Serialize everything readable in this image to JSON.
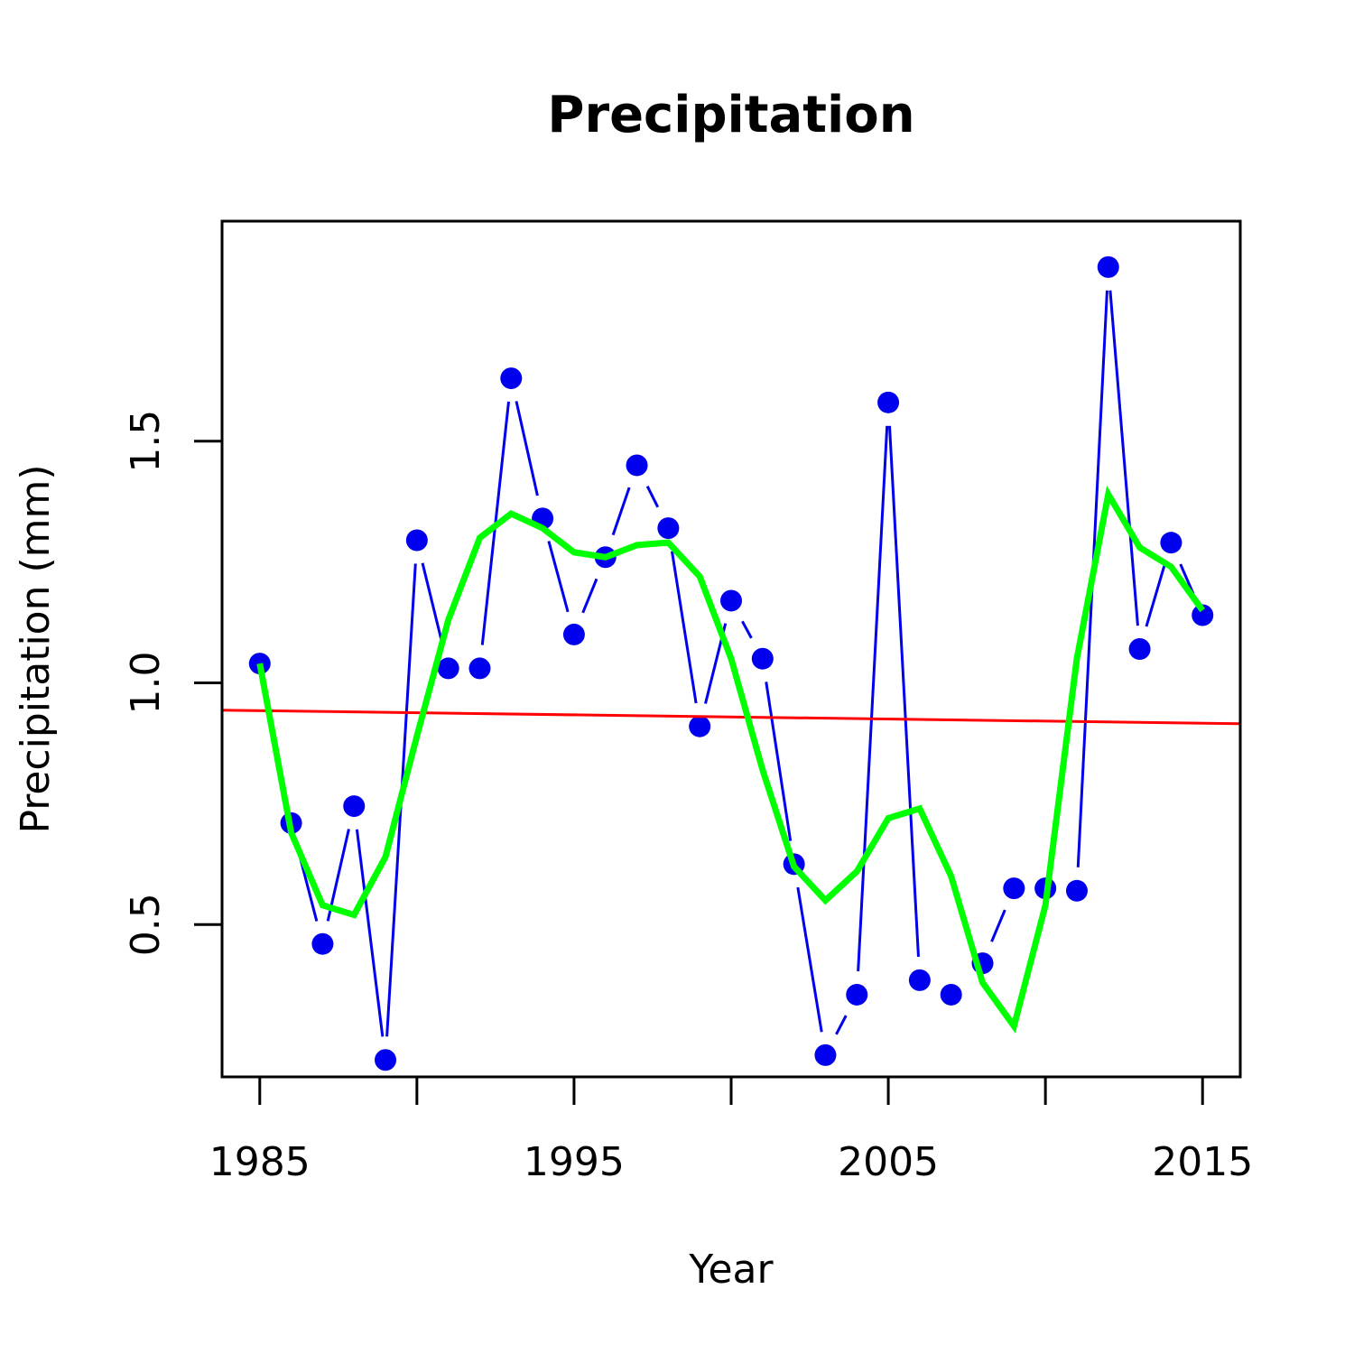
{
  "chart_data": {
    "type": "line",
    "title": "Precipitation",
    "xlabel": "Year",
    "ylabel": "Precipitation (mm)",
    "xlim": [
      1983.8,
      2016.2
    ],
    "ylim": [
      0.185,
      1.955
    ],
    "x_ticks": [
      1985,
      1990,
      1995,
      2000,
      2005,
      2010,
      2015
    ],
    "x_tick_labels": [
      "1985",
      "1995",
      "2005",
      "2015"
    ],
    "x_tick_labels_at": [
      1985,
      1995,
      2005,
      2015
    ],
    "y_ticks": [
      0.5,
      1.0,
      1.5
    ],
    "y_tick_labels": [
      "0.5",
      "1.0",
      "1.5"
    ],
    "grid": false,
    "legend": "none",
    "x": [
      1985,
      1986,
      1987,
      1988,
      1989,
      1990,
      1991,
      1992,
      1993,
      1994,
      1995,
      1996,
      1997,
      1998,
      1999,
      2000,
      2001,
      2002,
      2003,
      2004,
      2005,
      2006,
      2007,
      2008,
      2009,
      2010,
      2011,
      2012,
      2013,
      2014,
      2015
    ],
    "series": [
      {
        "role": "observed",
        "style": "line-points",
        "color": "#0000ee",
        "values": [
          1.04,
          0.71,
          0.46,
          0.745,
          0.22,
          1.295,
          1.03,
          1.03,
          1.63,
          1.34,
          1.1,
          1.26,
          1.45,
          1.32,
          0.91,
          1.17,
          1.05,
          0.625,
          0.23,
          0.355,
          1.58,
          0.385,
          0.355,
          0.42,
          0.575,
          0.575,
          0.57,
          1.86,
          1.07,
          1.29,
          1.14
        ]
      },
      {
        "role": "smoothed",
        "style": "thick-line",
        "color": "#00ff00",
        "values": [
          1.04,
          0.69,
          0.54,
          0.52,
          0.64,
          0.89,
          1.13,
          1.3,
          1.35,
          1.32,
          1.27,
          1.26,
          1.285,
          1.29,
          1.22,
          1.05,
          0.82,
          0.62,
          0.55,
          0.61,
          0.72,
          0.74,
          0.6,
          0.38,
          0.29,
          0.54,
          1.05,
          1.39,
          1.28,
          1.24,
          1.15
        ]
      },
      {
        "role": "trend",
        "style": "straight-line",
        "color": "#ff0000",
        "line_x": [
          1983.8,
          2016.2
        ],
        "line_y": [
          0.9435,
          0.9155
        ]
      }
    ]
  }
}
